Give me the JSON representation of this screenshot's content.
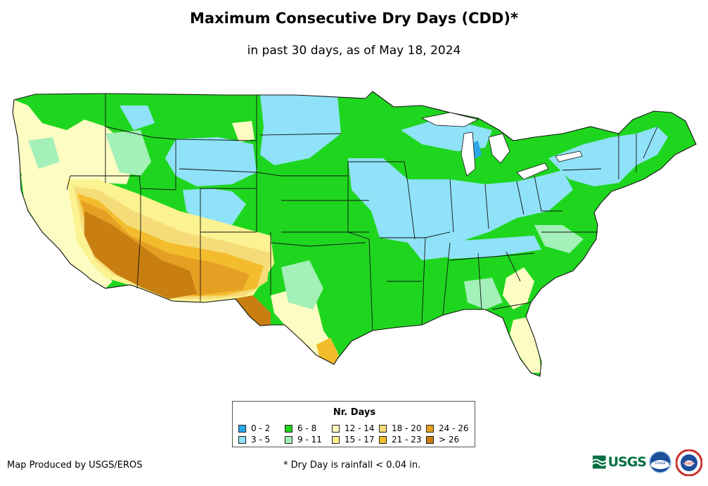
{
  "title": "Maximum Consecutive Dry Days (CDD)*",
  "subtitle": "in past 30 days, as of May 18, 2024",
  "legend": {
    "title": "Nr. Days",
    "items": [
      {
        "label": "0 - 2",
        "color": "#2aa7e8"
      },
      {
        "label": "3 - 5",
        "color": "#8fe2f7"
      },
      {
        "label": "6 - 8",
        "color": "#1fd61f"
      },
      {
        "label": "9 - 11",
        "color": "#a3f0b8"
      },
      {
        "label": "12 - 14",
        "color": "#fdfcc2"
      },
      {
        "label": "15 - 17",
        "color": "#fbf291"
      },
      {
        "label": "18 - 20",
        "color": "#f6dc78"
      },
      {
        "label": "21 - 23",
        "color": "#f3bc2d"
      },
      {
        "label": "24 - 26",
        "color": "#e5a024"
      },
      {
        "label": "> 26",
        "color": "#c87e11"
      }
    ]
  },
  "credit": "Map Produced by USGS/EROS",
  "footnote": "* Dry Day is rainfall < 0.04 in.",
  "logos": {
    "usgs": "USGS",
    "noaa": "noaa",
    "nws": "NWS"
  }
}
